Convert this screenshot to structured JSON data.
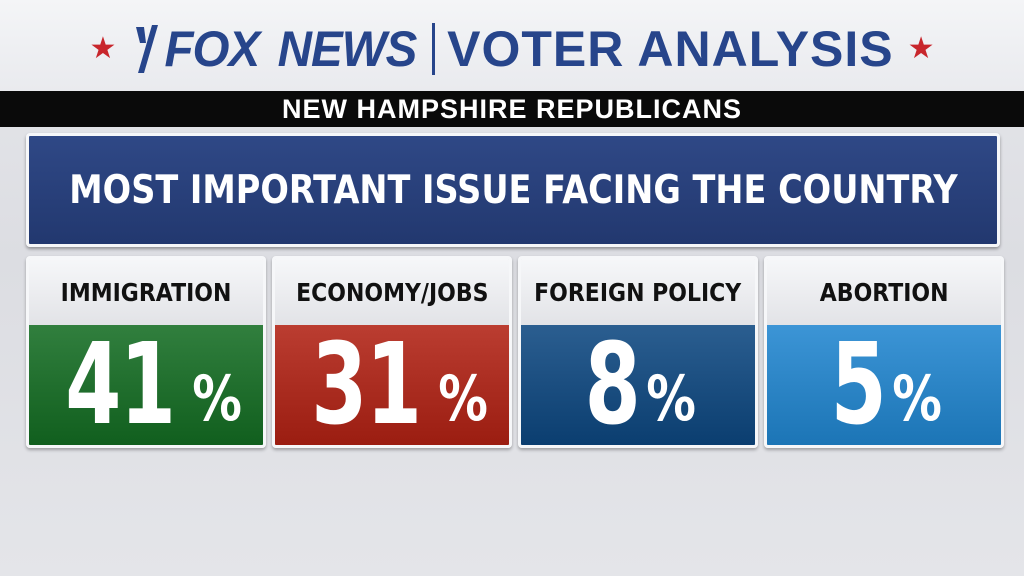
{
  "header": {
    "brand_fox": "FOX",
    "brand_news": "NEWS",
    "title": "VOTER ANALYSIS",
    "accent_color": "#27458b",
    "star_color": "#c8262c",
    "star_glyph": "★"
  },
  "subheader": {
    "text": "NEW HAMPSHIRE REPUBLICANS"
  },
  "question": {
    "text": "MOST IMPORTANT ISSUE FACING THE COUNTRY"
  },
  "results": [
    {
      "label": "IMMIGRATION",
      "value": "41",
      "unit": "%",
      "color": "#1f6d2c"
    },
    {
      "label": "ECONOMY/JOBS",
      "value": "31",
      "unit": "%",
      "color": "#a92b1f"
    },
    {
      "label": "FOREIGN POLICY",
      "value": "8",
      "unit": "%",
      "color": "#194c7e"
    },
    {
      "label": "ABORTION",
      "value": "5",
      "unit": "%",
      "color": "#2a83c4"
    }
  ]
}
